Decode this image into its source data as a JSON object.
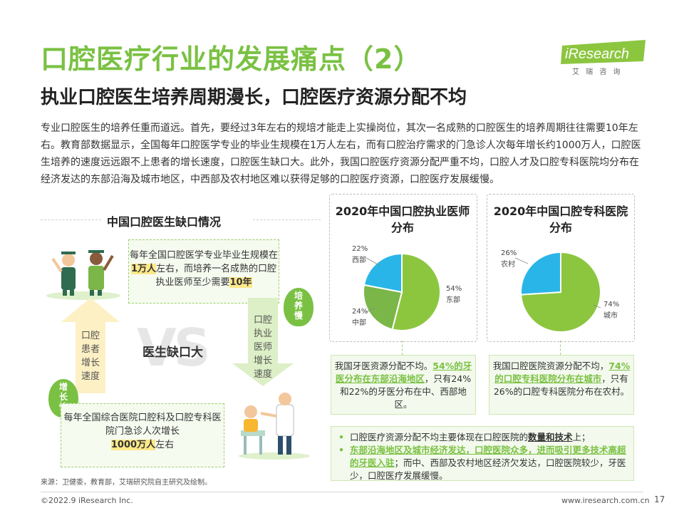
{
  "header": {
    "title": "口腔医疗行业的发展痛点（2）",
    "subtitle": "执业口腔医生培养周期漫长，口腔医疗资源分配不均",
    "logo_text": "iResearch",
    "logo_cn": "艾 瑞 咨 询"
  },
  "intro": "专业口腔医生的培养任重而道远。首先，要经过3年左右的规培才能走上实操岗位，其次一名成熟的口腔医生的培养周期往往需要10年左右。教育部数据显示，全国每年口腔医学专业的毕业生规模在1万人左右，而有口腔治疗需求的门急诊人次每年增长约1000万人，口腔医生培养的速度远远跟不上患者的增长速度，口腔医生缺口大。此外，我国口腔医疗资源分配严重不均，口腔人才及口腔专科医院均分布在经济发达的东部沿海及城市地区，中西部及农村地区难以获得足够的口腔医疗资源，口腔医疗发展缓慢。",
  "left": {
    "title": "中国口腔医生缺口情况",
    "box1": {
      "pre": "每年全国口腔医学专业毕业生规模在",
      "hl1": "1万人",
      "mid": "左右，而培养一名成熟的口腔执业医师至少需要",
      "hl2": "10年"
    },
    "box2": {
      "pre": "每年全国综合医院口腔科及口腔专科医院门急诊人次增长",
      "hl": "1000万人",
      "post": "左右"
    },
    "arrow_up_text": "口腔\n患者\n增长\n速度",
    "arrow_down_text": "口腔\n执业\n医师\n增长\n速度",
    "vs": "VS",
    "center": "医生缺口大",
    "badge_fast": "增\n长\n快",
    "badge_slow": "培\n养\n慢"
  },
  "pie1": {
    "title": "2020年中国口腔执业医师分布",
    "note_pre": "我国牙医资源分配不均。",
    "note_hl": "54%的牙医分布在东部沿海地区",
    "note_post": "，只有24%和22%的牙医分布在中、西部地区。"
  },
  "pie2": {
    "title": "2020年中国口腔专科医院分布",
    "note_pre": "我国口腔医院资源分配不均，",
    "note_hl": "74%的口腔专科医院分布在城市",
    "note_post": "，只有26%的口腔专科医院分布在农村。"
  },
  "bottom": {
    "b1_pre": "口腔医疗资源分配不均主要体现在口腔医院的",
    "b1_hl": "数量和技术",
    "b1_post": "上；",
    "b2_hl": "东部沿海地区及城市经济发达，口腔医院众多，进而吸引更多技术高超的牙医入驻",
    "b2_post": "；而中、西部及农村地区经济欠发达，口腔医院较少，牙医少，口腔医疗发展缓慢。"
  },
  "chart_data": [
    {
      "type": "pie",
      "title": "2020年中国口腔执业医师分布",
      "slices": [
        {
          "name": "东部",
          "value": 54,
          "label": "54%",
          "color": "#8cc63f"
        },
        {
          "name": "中部",
          "value": 24,
          "label": "24%",
          "color": "#7ab648"
        },
        {
          "name": "西部",
          "value": 22,
          "label": "22%",
          "color": "#29b5e8"
        }
      ]
    },
    {
      "type": "pie",
      "title": "2020年中国口腔专科医院分布",
      "slices": [
        {
          "name": "城市",
          "value": 74,
          "label": "74%",
          "color": "#8cc63f"
        },
        {
          "name": "农村",
          "value": 26,
          "label": "26%",
          "color": "#29b5e8"
        }
      ]
    }
  ],
  "colors": {
    "accent_green": "#7ac143",
    "blue": "#29b5e8",
    "highlight_yellow": "#fde98a"
  },
  "footer": {
    "source": "来源：卫健委，教育部，艾瑞研究院自主研究及绘制。",
    "copyright": "©2022.9 iResearch Inc.",
    "site": "www.iresearch.com.cn",
    "page": "17"
  }
}
